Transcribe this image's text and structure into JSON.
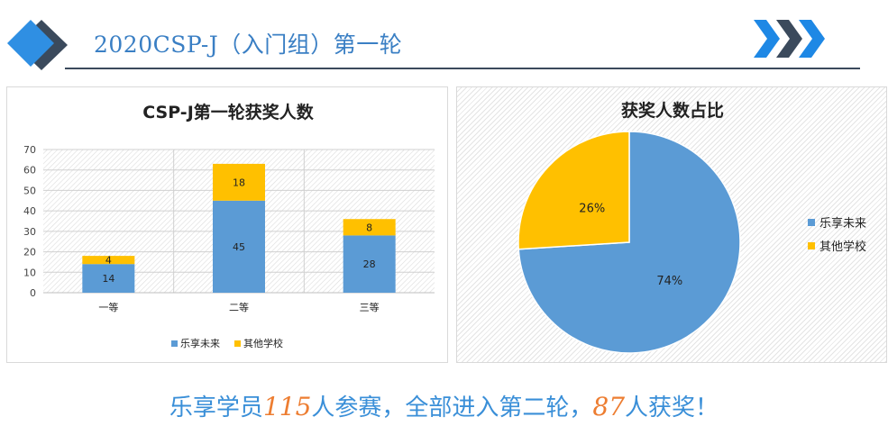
{
  "header": {
    "title": "2020CSP-J（入门组）第一轮",
    "colors": {
      "diamond_light": "#2f8fe3",
      "diamond_dark": "#3b4a5c",
      "chevron_light": "#1e88e5",
      "chevron_dark": "#3b4a5c"
    }
  },
  "chart_data": [
    {
      "type": "bar",
      "stacked": true,
      "title": "CSP-J第一轮获奖人数",
      "categories": [
        "一等",
        "二等",
        "三等"
      ],
      "series": [
        {
          "name": "乐享未来",
          "values": [
            14,
            45,
            28
          ],
          "color": "#5b9bd5"
        },
        {
          "name": "其他学校",
          "values": [
            4,
            18,
            8
          ],
          "color": "#ffc000"
        }
      ],
      "ylim": [
        0,
        70
      ],
      "yticks": [
        "0",
        "10",
        "20",
        "30",
        "40",
        "50",
        "60",
        "70"
      ],
      "grid": true,
      "legend": "bottom"
    },
    {
      "type": "pie",
      "title": "获奖人数占比",
      "labels": [
        "乐享未来",
        "其他学校"
      ],
      "values": [
        74,
        26
      ],
      "value_labels": [
        "74%",
        "26%"
      ],
      "colors": [
        "#5b9bd5",
        "#ffc000"
      ],
      "legend": "right"
    }
  ],
  "banner": {
    "part1": "乐享学员",
    "num1": "115",
    "part2": "人参赛，全部进入第二轮，",
    "num2": "87",
    "part3": "人获奖！"
  }
}
